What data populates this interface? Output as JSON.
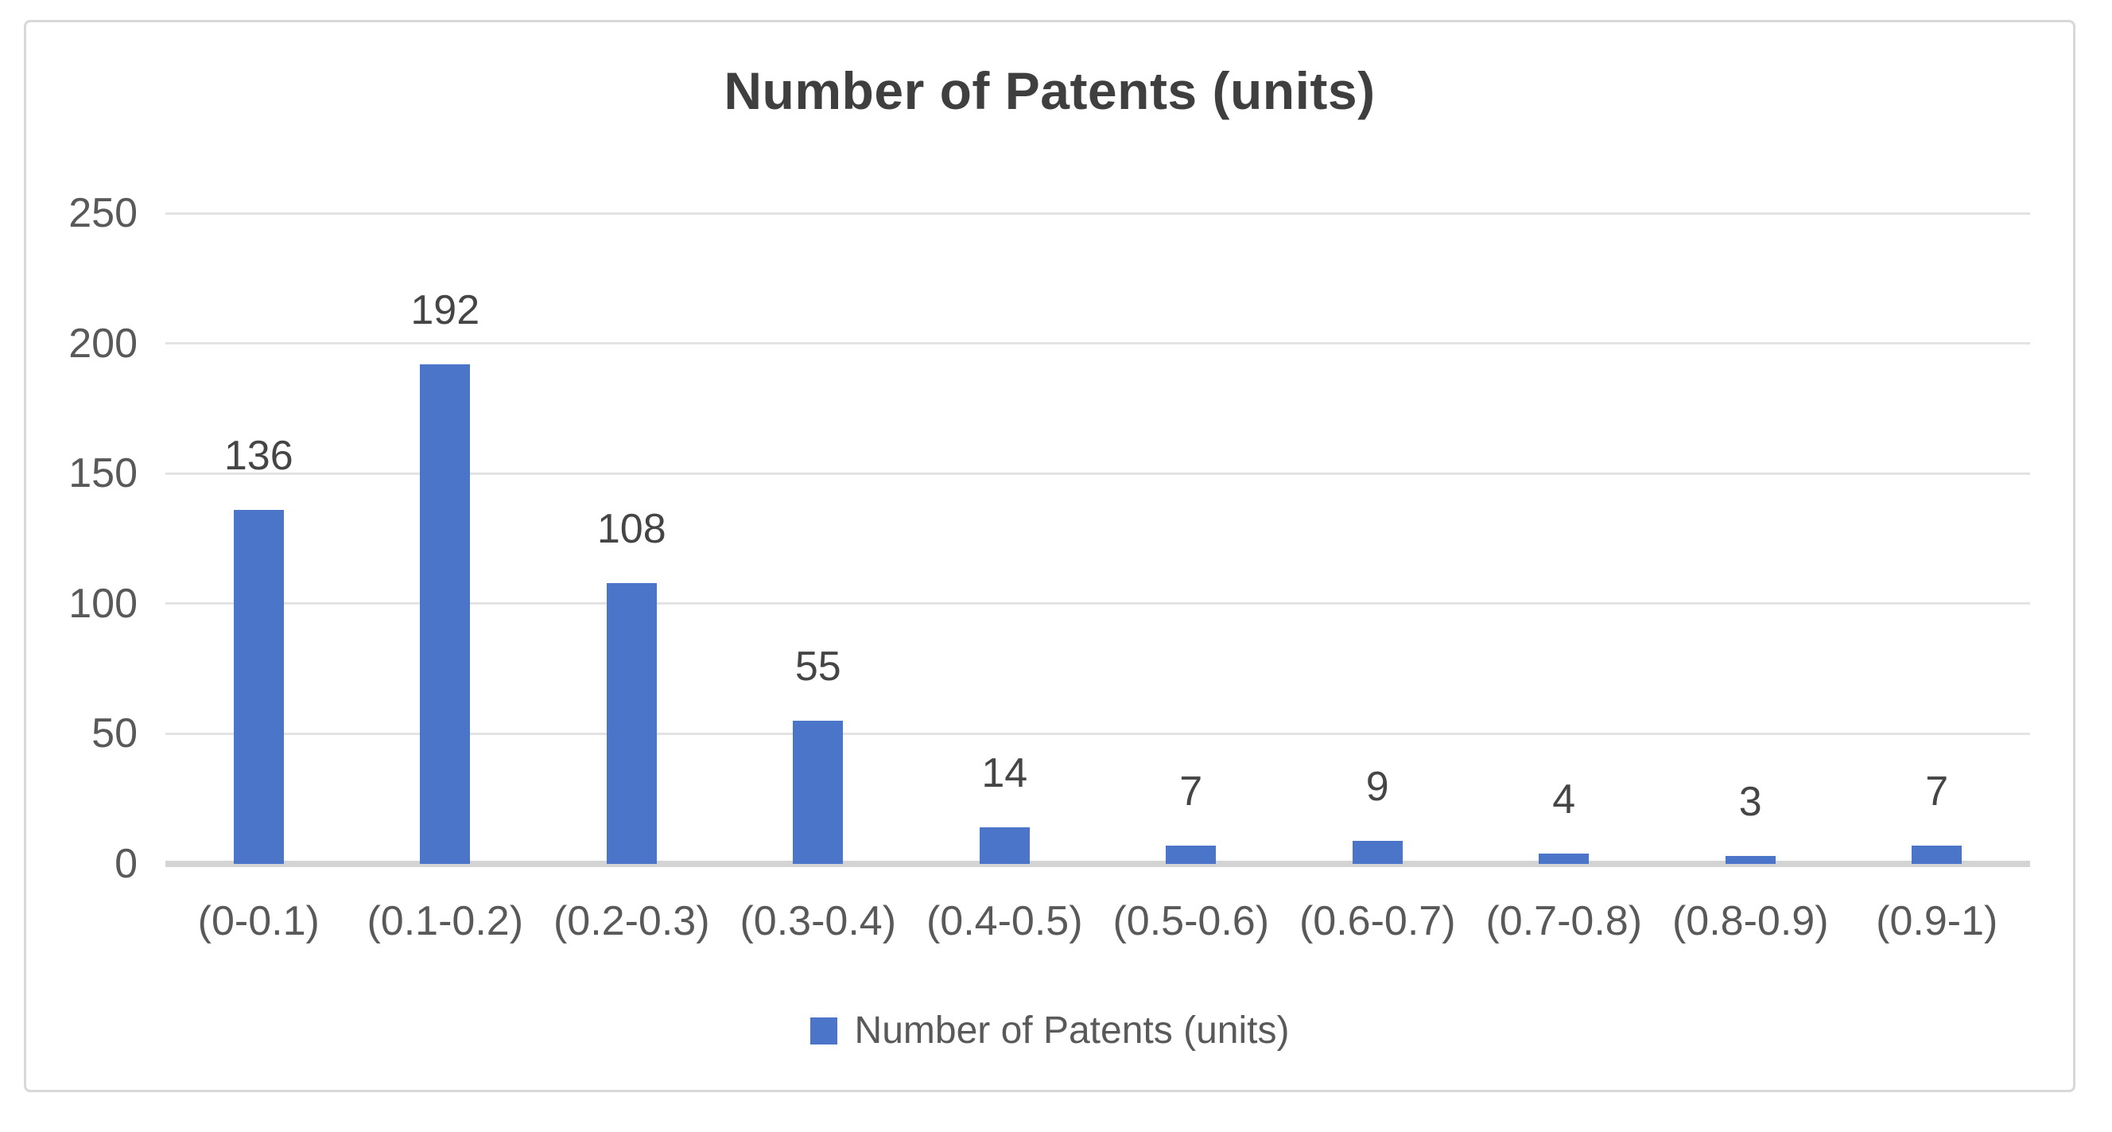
{
  "chart_data": {
    "type": "bar",
    "title": "Number of Patents (units)",
    "categories": [
      "(0-0.1)",
      "(0.1-0.2)",
      "(0.2-0.3)",
      "(0.3-0.4)",
      "(0.4-0.5)",
      "(0.5-0.6)",
      "(0.6-0.7)",
      "(0.7-0.8)",
      "(0.8-0.9)",
      "(0.9-1)"
    ],
    "values": [
      136,
      192,
      108,
      55,
      14,
      7,
      9,
      4,
      3,
      7
    ],
    "xlabel": "",
    "ylabel": "",
    "ylim": [
      0,
      250
    ],
    "yticks": [
      0,
      50,
      100,
      150,
      200,
      250
    ],
    "grid": true,
    "data_labels_shown": true,
    "legend": {
      "position": "bottom",
      "label": "Number of Patents (units)"
    },
    "colors": {
      "bar": "#4A75C8",
      "gridline": "#E3E3E3",
      "baseline": "#D4D4D4",
      "axis_text": "#595959",
      "value_label_text": "#454545",
      "title_text": "#3F3F3F",
      "card_border": "#D8D8D8",
      "background": "#FFFFFF"
    }
  }
}
